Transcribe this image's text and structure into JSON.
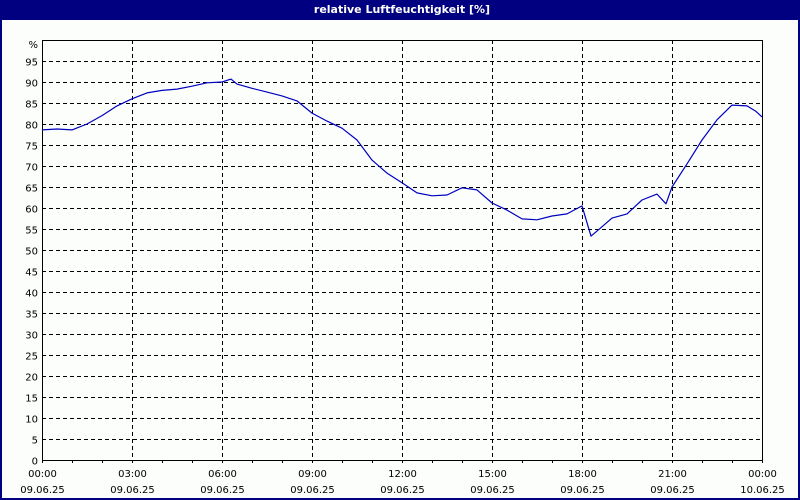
{
  "window": {
    "title": "relative Luftfeuchtigkeit [%]"
  },
  "colors": {
    "titlebar": "#000080",
    "line": "#0000c0",
    "grid": "#000000",
    "background": "#fbfefb"
  },
  "chart_data": {
    "type": "line",
    "title": "relative Luftfeuchtigkeit [%]",
    "xlabel": "",
    "ylabel": "%",
    "ylim": [
      0,
      100
    ],
    "yticks": [
      0,
      5,
      10,
      15,
      20,
      25,
      30,
      35,
      40,
      45,
      50,
      55,
      60,
      65,
      70,
      75,
      80,
      85,
      90,
      95
    ],
    "ytick_labels": [
      "0",
      "5",
      "10",
      "15",
      "20",
      "25",
      "30",
      "35",
      "40",
      "45",
      "50",
      "55",
      "60",
      "65",
      "70",
      "75",
      "80",
      "85",
      "90",
      "95"
    ],
    "y_unit_label": "%",
    "xticks": [
      {
        "time": "00:00",
        "date": "09.06.25"
      },
      {
        "time": "03:00",
        "date": "09.06.25"
      },
      {
        "time": "06:00",
        "date": "09.06.25"
      },
      {
        "time": "09:00",
        "date": "09.06.25"
      },
      {
        "time": "12:00",
        "date": "09.06.25"
      },
      {
        "time": "15:00",
        "date": "09.06.25"
      },
      {
        "time": "18:00",
        "date": "09.06.25"
      },
      {
        "time": "21:00",
        "date": "09.06.25"
      },
      {
        "time": "00:00",
        "date": "10.06.25"
      }
    ],
    "grid": true,
    "legend": "none",
    "series": [
      {
        "name": "relative Luftfeuchtigkeit",
        "x_hours": [
          0,
          0.5,
          1,
          1.5,
          2,
          2.5,
          3,
          3.5,
          4,
          4.5,
          5,
          5.5,
          6,
          6.3,
          6.5,
          7,
          7.5,
          8,
          8.5,
          9,
          9.5,
          10,
          10.5,
          11,
          11.5,
          12,
          12.5,
          13,
          13.5,
          14,
          14.5,
          15,
          15.5,
          16,
          16.5,
          17,
          17.5,
          18,
          18.3,
          18.5,
          19,
          19.5,
          20,
          20.5,
          20.8,
          21,
          21.5,
          22,
          22.5,
          23,
          23.5,
          23.8,
          24
        ],
        "values": [
          78.6,
          78.8,
          78.6,
          80.0,
          82.0,
          84.3,
          86.0,
          87.4,
          88.0,
          88.3,
          89.0,
          89.8,
          90.0,
          90.7,
          89.5,
          88.5,
          87.6,
          86.7,
          85.5,
          82.6,
          80.7,
          79.0,
          76.2,
          71.4,
          68.3,
          66.0,
          63.6,
          62.9,
          63.1,
          64.8,
          64.3,
          61.2,
          59.5,
          57.4,
          57.2,
          58.1,
          58.6,
          60.5,
          53.3,
          54.5,
          57.6,
          58.6,
          61.9,
          63.3,
          61.0,
          65.0,
          70.5,
          76.2,
          81.0,
          84.5,
          84.3,
          83.0,
          81.7
        ]
      }
    ]
  }
}
